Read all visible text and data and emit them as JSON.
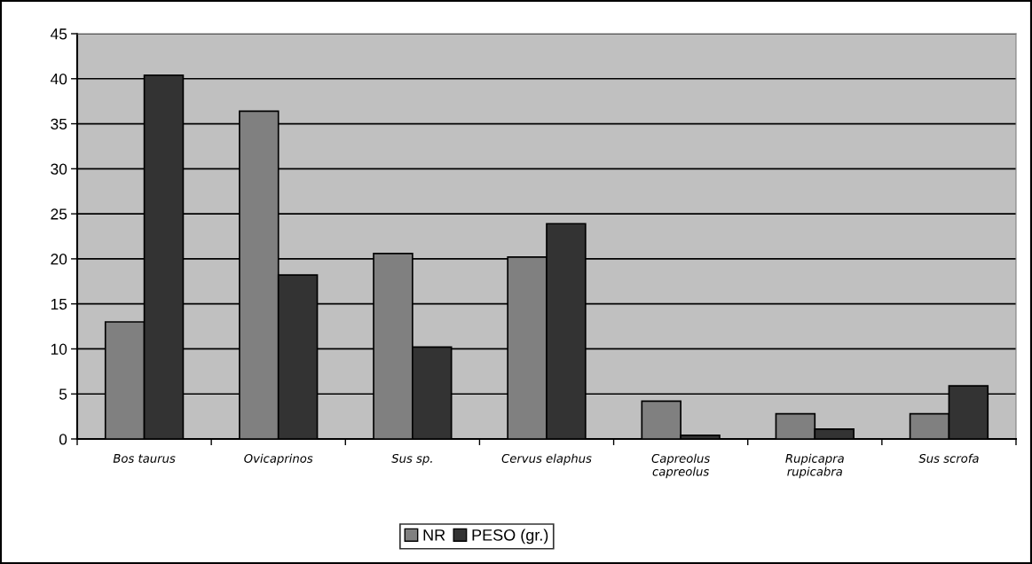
{
  "chart_data": {
    "type": "bar",
    "categories": [
      "Bos taurus",
      "Ovicaprinos",
      "Sus sp.",
      "Cervus elaphus",
      "Capreolus capreolus",
      "Rupicapra rupicabra",
      "Sus scrofa"
    ],
    "series": [
      {
        "name": "NR",
        "color": "#808080",
        "values": [
          13.0,
          36.4,
          20.6,
          20.2,
          4.2,
          2.8,
          2.8
        ]
      },
      {
        "name": "PESO (gr.)",
        "color": "#333333",
        "values": [
          40.4,
          18.2,
          10.2,
          23.9,
          0.4,
          1.1,
          5.9
        ]
      }
    ],
    "ylim": [
      0,
      45
    ],
    "yticks": [
      0,
      5,
      10,
      15,
      20,
      25,
      30,
      35,
      40,
      45
    ],
    "grid": "y",
    "legend": "bottom"
  }
}
